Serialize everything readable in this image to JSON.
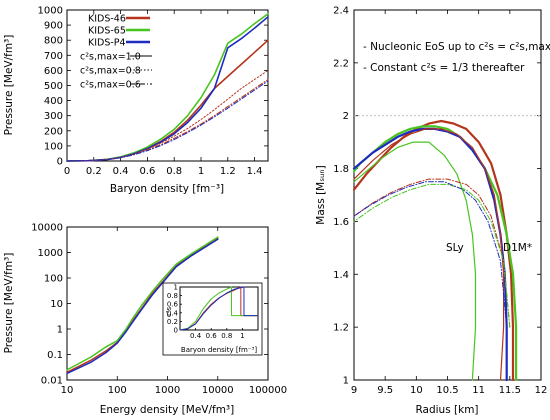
{
  "colors": {
    "kids46": "#b5341b",
    "kids65": "#47c41e",
    "kidsp4": "#1f2bbf"
  },
  "chart_data": [
    {
      "type": "line",
      "xlabel": "Baryon density [fm⁻³]",
      "ylabel": "Pressure [MeV/fm³]",
      "xlim": [
        0,
        1.5
      ],
      "ylim": [
        0,
        1000
      ],
      "xticks": [
        "0",
        "0.2",
        "0.4",
        "0.6",
        "0.8",
        "1",
        "1.2",
        "1.4"
      ],
      "yticks": [
        "0",
        "100",
        "200",
        "300",
        "400",
        "500",
        "600",
        "700",
        "800",
        "900",
        "1000"
      ],
      "legend_series": [
        "KIDS-46",
        "KIDS-65",
        "KIDS-P4"
      ],
      "legend_styles": [
        "c²s,max=1.0",
        "c²s,max=0.8",
        "c²s,max=0.6"
      ],
      "series": [
        {
          "name": "KIDS-46",
          "cs2max": "1.0",
          "x": [
            0,
            0.16,
            0.3,
            0.4,
            0.5,
            0.6,
            0.7,
            0.8,
            0.9,
            1.0,
            1.1,
            1.2,
            1.3,
            1.4,
            1.5
          ],
          "y": [
            0,
            2,
            10,
            25,
            50,
            85,
            130,
            190,
            270,
            370,
            480,
            560,
            640,
            720,
            800
          ]
        },
        {
          "name": "KIDS-65",
          "cs2max": "1.0",
          "x": [
            0,
            0.16,
            0.3,
            0.4,
            0.5,
            0.6,
            0.7,
            0.8,
            0.9,
            1.0,
            1.1,
            1.2,
            1.3,
            1.4,
            1.5
          ],
          "y": [
            0,
            2,
            11,
            27,
            54,
            92,
            145,
            210,
            300,
            420,
            570,
            780,
            840,
            910,
            975
          ]
        },
        {
          "name": "KIDS-P4",
          "cs2max": "1.0",
          "x": [
            0,
            0.16,
            0.3,
            0.4,
            0.5,
            0.6,
            0.7,
            0.8,
            0.9,
            1.0,
            1.1,
            1.2,
            1.3,
            1.4,
            1.5
          ],
          "y": [
            0,
            2,
            10,
            24,
            48,
            82,
            125,
            180,
            255,
            350,
            480,
            750,
            810,
            880,
            955
          ]
        },
        {
          "name": "KIDS-46",
          "cs2max": "0.8",
          "x": [
            0,
            0.16,
            0.3,
            0.4,
            0.5,
            0.6,
            0.7,
            0.8,
            0.9,
            1.0,
            1.1,
            1.2,
            1.3,
            1.4,
            1.5
          ],
          "y": [
            0,
            2,
            10,
            24,
            46,
            78,
            118,
            165,
            215,
            275,
            340,
            410,
            480,
            540,
            600
          ]
        },
        {
          "name": "KIDS-46",
          "cs2max": "0.6",
          "x": [
            0,
            0.16,
            0.3,
            0.4,
            0.5,
            0.6,
            0.7,
            0.8,
            0.9,
            1.0,
            1.1,
            1.2,
            1.3,
            1.4,
            1.5
          ],
          "y": [
            0,
            2,
            10,
            22,
            43,
            72,
            108,
            150,
            195,
            245,
            300,
            360,
            420,
            480,
            540
          ]
        },
        {
          "name": "KIDS-P4",
          "cs2max": "0.6",
          "x": [
            0,
            0.16,
            0.3,
            0.4,
            0.5,
            0.6,
            0.7,
            0.8,
            0.9,
            1.0,
            1.1,
            1.2,
            1.3,
            1.4,
            1.5
          ],
          "y": [
            0,
            2,
            9,
            21,
            41,
            68,
            102,
            142,
            188,
            238,
            292,
            350,
            410,
            470,
            530
          ]
        }
      ]
    },
    {
      "type": "line",
      "xlabel": "Energy density [MeV/fm³]",
      "ylabel": "Pressure [MeV/fm³]",
      "xscale": "log",
      "yscale": "log",
      "xlim": [
        10,
        100000
      ],
      "ylim": [
        0.01,
        10000
      ],
      "xticks": [
        "10",
        "100",
        "1000",
        "10000",
        "100000"
      ],
      "yticks": [
        "0.01",
        "0.1",
        "1",
        "10",
        "100",
        "1000",
        "10000"
      ],
      "series": [
        {
          "name": "KIDS-46",
          "x": [
            10,
            30,
            60,
            100,
            150,
            200,
            300,
            500,
            800,
            1500,
            3000,
            10000
          ],
          "y": [
            0.02,
            0.06,
            0.14,
            0.3,
            0.9,
            2,
            6,
            25,
            70,
            300,
            800,
            3500
          ]
        },
        {
          "name": "KIDS-65",
          "x": [
            10,
            30,
            60,
            100,
            150,
            200,
            300,
            500,
            800,
            1500,
            3000,
            10000
          ],
          "y": [
            0.025,
            0.08,
            0.2,
            0.35,
            1,
            2.5,
            8,
            30,
            90,
            350,
            900,
            4000
          ]
        },
        {
          "name": "KIDS-P4",
          "x": [
            10,
            30,
            60,
            100,
            150,
            200,
            300,
            500,
            800,
            1500,
            3000,
            10000
          ],
          "y": [
            0.018,
            0.05,
            0.12,
            0.28,
            0.8,
            1.8,
            5.5,
            22,
            65,
            280,
            750,
            3300
          ]
        }
      ],
      "inset": {
        "xlabel": "Baryon density [fm⁻³]",
        "ylabel": "c²s",
        "xlim": [
          0.2,
          1.2
        ],
        "ylim": [
          0,
          1
        ],
        "xticks": [
          "0.4",
          "0.6",
          "0.8",
          "1"
        ],
        "yticks": [
          "0",
          "0.2",
          "0.4",
          "0.6",
          "0.8",
          "1"
        ]
      }
    },
    {
      "type": "line",
      "xlabel": "Radius [km]",
      "ylabel": "Mass [Mₛᵤₙ]",
      "xlim": [
        9,
        12
      ],
      "ylim": [
        1,
        2.4
      ],
      "xticks": [
        "9",
        "9.5",
        "10",
        "10.5",
        "11",
        "11.5",
        "12"
      ],
      "yticks": [
        "1",
        "1.2",
        "1.4",
        "1.6",
        "1.8",
        "2",
        "2.2",
        "2.4"
      ],
      "annotations": [
        "- Nucleonic EoS up to c²s = c²s,max",
        "- Constant c²s = 1/3 thereafter",
        "SLy",
        "D1M*"
      ],
      "series": [
        {
          "name": "KIDS-46",
          "x": [
            11.55,
            11.55,
            11.52,
            11.45,
            11.35,
            11.2,
            11.0,
            10.8,
            10.6,
            10.4,
            10.2,
            10.0,
            9.8,
            9.6,
            9.4,
            9.2,
            9.0
          ],
          "y": [
            1.0,
            1.2,
            1.4,
            1.55,
            1.7,
            1.82,
            1.9,
            1.95,
            1.97,
            1.98,
            1.97,
            1.95,
            1.92,
            1.88,
            1.83,
            1.78,
            1.72
          ]
        },
        {
          "name": "KIDS-65",
          "x": [
            11.6,
            11.6,
            11.55,
            11.45,
            11.3,
            11.1,
            10.9,
            10.7,
            10.5,
            10.3,
            10.1,
            9.9,
            9.7,
            9.5,
            9.3,
            9.1,
            9.0
          ],
          "y": [
            1.0,
            1.2,
            1.4,
            1.55,
            1.7,
            1.8,
            1.87,
            1.92,
            1.95,
            1.96,
            1.96,
            1.95,
            1.93,
            1.9,
            1.86,
            1.82,
            1.79
          ]
        },
        {
          "name": "KIDS-P4",
          "x": [
            11.45,
            11.45,
            11.42,
            11.35,
            11.25,
            11.1,
            10.9,
            10.7,
            10.5,
            10.3,
            10.1,
            9.9,
            9.7,
            9.5,
            9.3,
            9.1,
            9.0
          ],
          "y": [
            1.0,
            1.2,
            1.4,
            1.55,
            1.68,
            1.8,
            1.87,
            1.92,
            1.94,
            1.95,
            1.95,
            1.94,
            1.92,
            1.89,
            1.86,
            1.82,
            1.8
          ]
        },
        {
          "name": "SLy",
          "x": [
            10.9,
            10.95,
            10.95,
            10.9,
            10.8,
            10.65,
            10.45,
            10.2,
            9.95,
            9.7,
            9.45,
            9.2,
            9.0
          ],
          "y": [
            1.0,
            1.2,
            1.4,
            1.55,
            1.68,
            1.78,
            1.85,
            1.9,
            1.9,
            1.88,
            1.84,
            1.79,
            1.75
          ]
        },
        {
          "name": "D1M*",
          "x": [
            11.35,
            11.4,
            11.4,
            11.35,
            11.25,
            11.1,
            10.9,
            10.65,
            10.4,
            10.15,
            9.9,
            9.6,
            9.3,
            9.0
          ],
          "y": [
            1.0,
            1.2,
            1.4,
            1.55,
            1.7,
            1.8,
            1.88,
            1.93,
            1.95,
            1.95,
            1.93,
            1.89,
            1.83,
            1.76
          ]
        },
        {
          "name": "KIDS-46",
          "cs2max": "0.6",
          "x": [
            11.5,
            11.4,
            11.2,
            11.0,
            10.8,
            10.5,
            10.2,
            9.9,
            9.6,
            9.3,
            9.0
          ],
          "y": [
            1.2,
            1.45,
            1.62,
            1.7,
            1.74,
            1.76,
            1.76,
            1.74,
            1.71,
            1.67,
            1.62
          ]
        },
        {
          "name": "KIDS-65",
          "cs2max": "0.6",
          "x": [
            11.5,
            11.4,
            11.2,
            11.0,
            10.8,
            10.5,
            10.2,
            9.9,
            9.6,
            9.3,
            9.0
          ],
          "y": [
            1.2,
            1.45,
            1.6,
            1.68,
            1.72,
            1.74,
            1.74,
            1.72,
            1.69,
            1.65,
            1.6
          ]
        },
        {
          "name": "KIDS-P4",
          "cs2max": "0.6",
          "x": [
            11.45,
            11.35,
            11.15,
            10.95,
            10.75,
            10.45,
            10.15,
            9.85,
            9.55,
            9.25,
            9.0
          ],
          "y": [
            1.2,
            1.45,
            1.6,
            1.68,
            1.72,
            1.75,
            1.75,
            1.73,
            1.7,
            1.66,
            1.62
          ]
        }
      ]
    }
  ]
}
